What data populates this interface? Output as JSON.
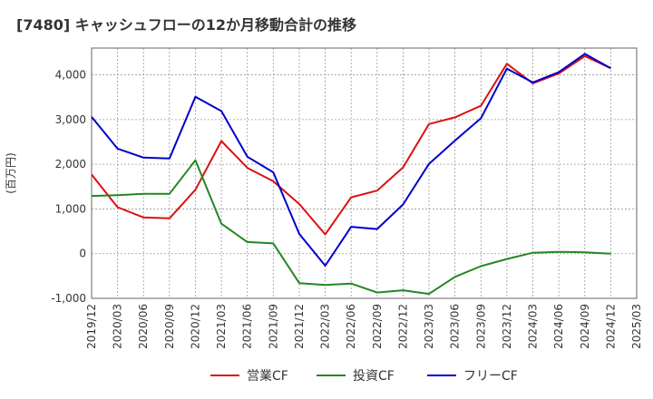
{
  "chart_data": {
    "type": "line",
    "title": "[7480]  キャッシュフローの12か月移動合計の推移",
    "ylabel": "(百万円)",
    "xlabel": "",
    "x": [
      "2019/12",
      "2020/03",
      "2020/06",
      "2020/09",
      "2020/12",
      "2021/03",
      "2021/06",
      "2021/09",
      "2021/12",
      "2022/03",
      "2022/06",
      "2022/09",
      "2022/12",
      "2023/03",
      "2023/06",
      "2023/09",
      "2023/12",
      "2024/03",
      "2024/06",
      "2024/09",
      "2024/12"
    ],
    "x_tick_labels": [
      "2019/12",
      "2020/03",
      "2020/06",
      "2020/09",
      "2020/12",
      "2021/03",
      "2021/06",
      "2021/09",
      "2021/12",
      "2022/03",
      "2022/06",
      "2022/09",
      "2022/12",
      "2023/03",
      "2023/06",
      "2023/09",
      "2023/12",
      "2024/03",
      "2024/06",
      "2024/09",
      "2024/12",
      "2025/03"
    ],
    "ylim": [
      -1000,
      4600
    ],
    "y_ticks": [
      -1000,
      0,
      1000,
      2000,
      3000,
      4000
    ],
    "y_tick_labels": [
      "-1,000",
      "0",
      "1,000",
      "2,000",
      "3,000",
      "4,000"
    ],
    "grid": true,
    "legend_position": "bottom",
    "series": [
      {
        "name": "営業CF",
        "color": "#dd1111",
        "values": [
          1770,
          1040,
          810,
          790,
          1430,
          2520,
          1920,
          1620,
          1110,
          430,
          1260,
          1410,
          1930,
          2900,
          3050,
          3310,
          4250,
          3810,
          4030,
          4420,
          4150
        ]
      },
      {
        "name": "投資CF",
        "color": "#228822",
        "values": [
          1290,
          1310,
          1340,
          1340,
          2090,
          670,
          260,
          230,
          -660,
          -700,
          -670,
          -870,
          -820,
          -900,
          -520,
          -280,
          -120,
          20,
          40,
          30,
          0
        ]
      },
      {
        "name": "フリーCF",
        "color": "#0000cc",
        "values": [
          3060,
          2350,
          2150,
          2130,
          3510,
          3190,
          2170,
          1820,
          440,
          -270,
          600,
          550,
          1100,
          2010,
          2530,
          3030,
          4140,
          3830,
          4060,
          4470,
          4150
        ]
      }
    ]
  }
}
